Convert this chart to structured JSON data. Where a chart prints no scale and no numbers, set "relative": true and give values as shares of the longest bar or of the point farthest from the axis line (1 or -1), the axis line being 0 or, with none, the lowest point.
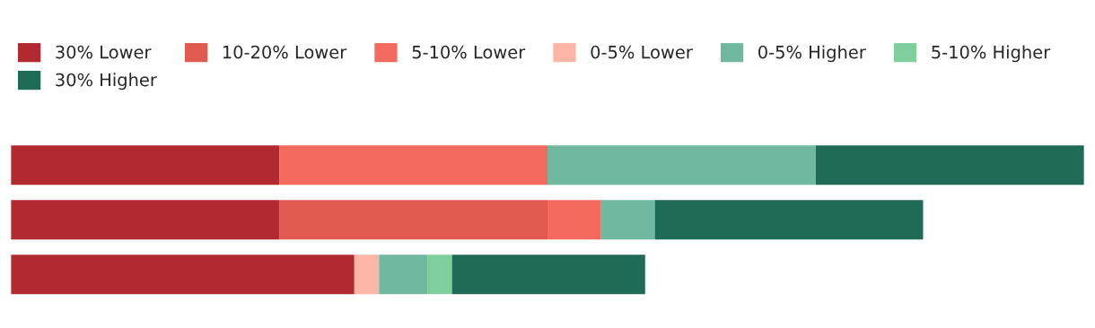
{
  "chart_data": {
    "type": "bar",
    "orientation": "horizontal",
    "stacked": true,
    "relative": true,
    "legend": "top",
    "categories": [
      null,
      null,
      null
    ],
    "series": [
      {
        "name": "30% Lower",
        "color": "#b02a30",
        "values": [
          0.25,
          0.25,
          0.32
        ]
      },
      {
        "name": "10-20% Lower",
        "color": "#e05a4f",
        "values": [
          0,
          0.25,
          0
        ]
      },
      {
        "name": "5-10% Lower",
        "color": "#f46a5f",
        "values": [
          0.25,
          0.05,
          0
        ]
      },
      {
        "name": "0-5% Lower",
        "color": "#fdb5a5",
        "values": [
          0,
          0,
          0.023
        ]
      },
      {
        "name": "0-5% Higher",
        "color": "#70b8a0",
        "values": [
          0.25,
          0.05,
          0.045
        ]
      },
      {
        "name": "5-10% Higher",
        "color": "#7fcf9c",
        "values": [
          0,
          0,
          0.023
        ]
      },
      {
        "name": "30% Higher",
        "color": "#206b55",
        "values": [
          0.25,
          0.25,
          0.18
        ]
      }
    ]
  }
}
